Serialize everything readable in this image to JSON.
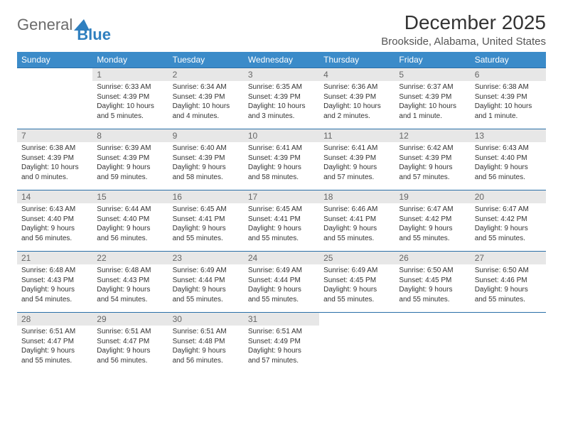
{
  "logo": {
    "word1": "General",
    "word2": "Blue"
  },
  "title": "December 2025",
  "location": "Brookside, Alabama, United States",
  "headers": [
    "Sunday",
    "Monday",
    "Tuesday",
    "Wednesday",
    "Thursday",
    "Friday",
    "Saturday"
  ],
  "colors": {
    "header_bg": "#3b8bc9",
    "header_text": "#ffffff",
    "daynum_bg": "#e7e7e7",
    "row_divider": "#2a6fa8",
    "logo_gray": "#6b6b6b",
    "logo_blue": "#2f7fbf"
  },
  "weeks": [
    [
      null,
      {
        "n": "1",
        "sunrise": "Sunrise: 6:33 AM",
        "sunset": "Sunset: 4:39 PM",
        "day1": "Daylight: 10 hours",
        "day2": "and 5 minutes."
      },
      {
        "n": "2",
        "sunrise": "Sunrise: 6:34 AM",
        "sunset": "Sunset: 4:39 PM",
        "day1": "Daylight: 10 hours",
        "day2": "and 4 minutes."
      },
      {
        "n": "3",
        "sunrise": "Sunrise: 6:35 AM",
        "sunset": "Sunset: 4:39 PM",
        "day1": "Daylight: 10 hours",
        "day2": "and 3 minutes."
      },
      {
        "n": "4",
        "sunrise": "Sunrise: 6:36 AM",
        "sunset": "Sunset: 4:39 PM",
        "day1": "Daylight: 10 hours",
        "day2": "and 2 minutes."
      },
      {
        "n": "5",
        "sunrise": "Sunrise: 6:37 AM",
        "sunset": "Sunset: 4:39 PM",
        "day1": "Daylight: 10 hours",
        "day2": "and 1 minute."
      },
      {
        "n": "6",
        "sunrise": "Sunrise: 6:38 AM",
        "sunset": "Sunset: 4:39 PM",
        "day1": "Daylight: 10 hours",
        "day2": "and 1 minute."
      }
    ],
    [
      {
        "n": "7",
        "sunrise": "Sunrise: 6:38 AM",
        "sunset": "Sunset: 4:39 PM",
        "day1": "Daylight: 10 hours",
        "day2": "and 0 minutes."
      },
      {
        "n": "8",
        "sunrise": "Sunrise: 6:39 AM",
        "sunset": "Sunset: 4:39 PM",
        "day1": "Daylight: 9 hours",
        "day2": "and 59 minutes."
      },
      {
        "n": "9",
        "sunrise": "Sunrise: 6:40 AM",
        "sunset": "Sunset: 4:39 PM",
        "day1": "Daylight: 9 hours",
        "day2": "and 58 minutes."
      },
      {
        "n": "10",
        "sunrise": "Sunrise: 6:41 AM",
        "sunset": "Sunset: 4:39 PM",
        "day1": "Daylight: 9 hours",
        "day2": "and 58 minutes."
      },
      {
        "n": "11",
        "sunrise": "Sunrise: 6:41 AM",
        "sunset": "Sunset: 4:39 PM",
        "day1": "Daylight: 9 hours",
        "day2": "and 57 minutes."
      },
      {
        "n": "12",
        "sunrise": "Sunrise: 6:42 AM",
        "sunset": "Sunset: 4:39 PM",
        "day1": "Daylight: 9 hours",
        "day2": "and 57 minutes."
      },
      {
        "n": "13",
        "sunrise": "Sunrise: 6:43 AM",
        "sunset": "Sunset: 4:40 PM",
        "day1": "Daylight: 9 hours",
        "day2": "and 56 minutes."
      }
    ],
    [
      {
        "n": "14",
        "sunrise": "Sunrise: 6:43 AM",
        "sunset": "Sunset: 4:40 PM",
        "day1": "Daylight: 9 hours",
        "day2": "and 56 minutes."
      },
      {
        "n": "15",
        "sunrise": "Sunrise: 6:44 AM",
        "sunset": "Sunset: 4:40 PM",
        "day1": "Daylight: 9 hours",
        "day2": "and 56 minutes."
      },
      {
        "n": "16",
        "sunrise": "Sunrise: 6:45 AM",
        "sunset": "Sunset: 4:41 PM",
        "day1": "Daylight: 9 hours",
        "day2": "and 55 minutes."
      },
      {
        "n": "17",
        "sunrise": "Sunrise: 6:45 AM",
        "sunset": "Sunset: 4:41 PM",
        "day1": "Daylight: 9 hours",
        "day2": "and 55 minutes."
      },
      {
        "n": "18",
        "sunrise": "Sunrise: 6:46 AM",
        "sunset": "Sunset: 4:41 PM",
        "day1": "Daylight: 9 hours",
        "day2": "and 55 minutes."
      },
      {
        "n": "19",
        "sunrise": "Sunrise: 6:47 AM",
        "sunset": "Sunset: 4:42 PM",
        "day1": "Daylight: 9 hours",
        "day2": "and 55 minutes."
      },
      {
        "n": "20",
        "sunrise": "Sunrise: 6:47 AM",
        "sunset": "Sunset: 4:42 PM",
        "day1": "Daylight: 9 hours",
        "day2": "and 55 minutes."
      }
    ],
    [
      {
        "n": "21",
        "sunrise": "Sunrise: 6:48 AM",
        "sunset": "Sunset: 4:43 PM",
        "day1": "Daylight: 9 hours",
        "day2": "and 54 minutes."
      },
      {
        "n": "22",
        "sunrise": "Sunrise: 6:48 AM",
        "sunset": "Sunset: 4:43 PM",
        "day1": "Daylight: 9 hours",
        "day2": "and 54 minutes."
      },
      {
        "n": "23",
        "sunrise": "Sunrise: 6:49 AM",
        "sunset": "Sunset: 4:44 PM",
        "day1": "Daylight: 9 hours",
        "day2": "and 55 minutes."
      },
      {
        "n": "24",
        "sunrise": "Sunrise: 6:49 AM",
        "sunset": "Sunset: 4:44 PM",
        "day1": "Daylight: 9 hours",
        "day2": "and 55 minutes."
      },
      {
        "n": "25",
        "sunrise": "Sunrise: 6:49 AM",
        "sunset": "Sunset: 4:45 PM",
        "day1": "Daylight: 9 hours",
        "day2": "and 55 minutes."
      },
      {
        "n": "26",
        "sunrise": "Sunrise: 6:50 AM",
        "sunset": "Sunset: 4:45 PM",
        "day1": "Daylight: 9 hours",
        "day2": "and 55 minutes."
      },
      {
        "n": "27",
        "sunrise": "Sunrise: 6:50 AM",
        "sunset": "Sunset: 4:46 PM",
        "day1": "Daylight: 9 hours",
        "day2": "and 55 minutes."
      }
    ],
    [
      {
        "n": "28",
        "sunrise": "Sunrise: 6:51 AM",
        "sunset": "Sunset: 4:47 PM",
        "day1": "Daylight: 9 hours",
        "day2": "and 55 minutes."
      },
      {
        "n": "29",
        "sunrise": "Sunrise: 6:51 AM",
        "sunset": "Sunset: 4:47 PM",
        "day1": "Daylight: 9 hours",
        "day2": "and 56 minutes."
      },
      {
        "n": "30",
        "sunrise": "Sunrise: 6:51 AM",
        "sunset": "Sunset: 4:48 PM",
        "day1": "Daylight: 9 hours",
        "day2": "and 56 minutes."
      },
      {
        "n": "31",
        "sunrise": "Sunrise: 6:51 AM",
        "sunset": "Sunset: 4:49 PM",
        "day1": "Daylight: 9 hours",
        "day2": "and 57 minutes."
      },
      null,
      null,
      null
    ]
  ]
}
